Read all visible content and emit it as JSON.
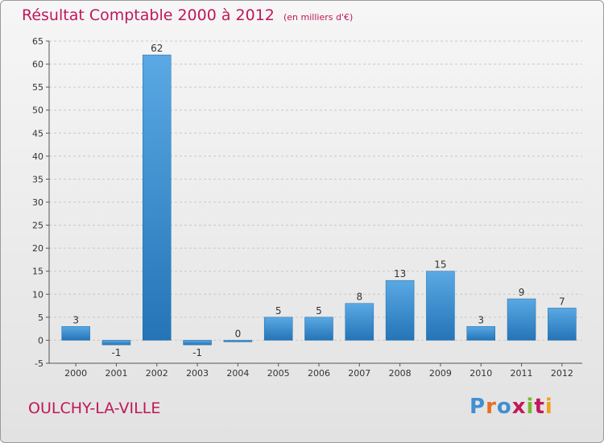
{
  "header": {
    "title": "Résultat Comptable 2000 à 2012",
    "subtitle": "(en milliers d'€)"
  },
  "footer": {
    "city": "OULCHY-LA-VILLE",
    "logo_text": "Proxiti"
  },
  "colors": {
    "title": "#c0175a",
    "bar_top": "#5aa9e4",
    "bar_bottom": "#2474b7",
    "logo_letters": [
      "#3f8fd1",
      "#e96d24",
      "#3f8fd1",
      "#c2185b",
      "#7cb82f",
      "#c2185b",
      "#f1a11e"
    ]
  },
  "chart_data": {
    "type": "bar",
    "categories": [
      "2000",
      "2001",
      "2002",
      "2003",
      "2004",
      "2005",
      "2006",
      "2007",
      "2008",
      "2009",
      "2010",
      "2011",
      "2012"
    ],
    "values": [
      3,
      -1,
      62,
      -1,
      0,
      5,
      5,
      8,
      13,
      15,
      3,
      9,
      7
    ],
    "title": "Résultat Comptable 2000 à 2012",
    "ylabel": "",
    "xlabel": "",
    "ylim": [
      -5,
      65
    ],
    "yticks": [
      -5,
      0,
      5,
      10,
      15,
      20,
      25,
      30,
      35,
      40,
      45,
      50,
      55,
      60,
      65
    ],
    "grid": true
  }
}
